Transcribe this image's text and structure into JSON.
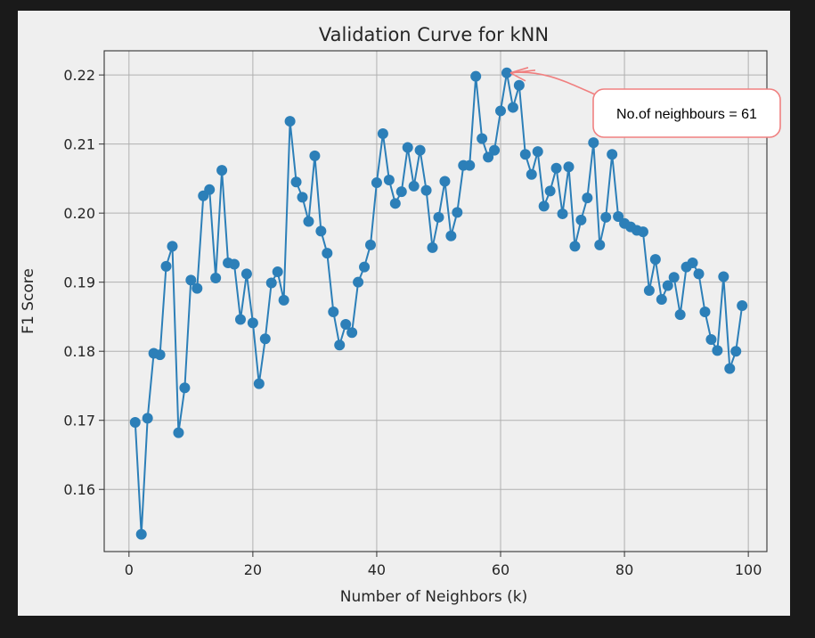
{
  "chart_data": {
    "type": "line",
    "title": "Validation Curve for kNN",
    "xlabel": "Number of Neighbors (k)",
    "ylabel": "F1 Score",
    "xlim": [
      -4,
      103
    ],
    "ylim": [
      0.151,
      0.2235
    ],
    "xticks": [
      0,
      20,
      40,
      60,
      80,
      100
    ],
    "yticks": [
      0.16,
      0.17,
      0.18,
      0.19,
      0.2,
      0.21,
      0.22
    ],
    "grid": true,
    "marker": "circle",
    "line_color": "#2c7fb8",
    "series": [
      {
        "x": [
          1,
          2,
          3,
          4,
          5,
          6,
          7,
          8,
          9,
          10,
          11,
          12,
          13,
          14,
          15,
          16,
          17,
          18,
          19,
          20,
          21,
          22,
          23,
          24,
          25,
          26,
          27,
          28,
          29,
          30,
          31,
          32,
          33,
          34,
          35,
          36,
          37,
          38,
          39,
          40,
          41,
          42,
          43,
          44,
          45,
          46,
          47,
          48,
          49,
          50,
          51,
          52,
          53,
          54,
          55,
          56,
          57,
          58,
          59,
          60,
          61,
          62,
          63,
          64,
          65,
          66,
          67,
          68,
          69,
          70,
          71,
          72,
          73,
          74,
          75,
          76,
          77,
          78,
          79,
          80,
          81,
          82,
          83,
          84,
          85,
          86,
          87,
          88,
          89,
          90,
          91,
          92,
          93,
          94,
          95,
          96,
          97,
          98,
          99
        ],
        "y": [
          0.1697,
          0.1535,
          0.1703,
          0.1797,
          0.1795,
          0.1923,
          0.1952,
          0.1682,
          0.1747,
          0.1903,
          0.1891,
          0.2025,
          0.2034,
          0.1906,
          0.2062,
          0.1928,
          0.1926,
          0.1846,
          0.1912,
          0.1841,
          0.1753,
          0.1818,
          0.1899,
          0.1915,
          0.1874,
          0.2133,
          0.2045,
          0.2023,
          0.1988,
          0.2083,
          0.1974,
          0.1942,
          0.1857,
          0.1809,
          0.1839,
          0.1827,
          0.19,
          0.1922,
          0.1954,
          0.2044,
          0.2115,
          0.2048,
          0.2014,
          0.2031,
          0.2095,
          0.2039,
          0.2091,
          0.2033,
          0.195,
          0.1994,
          0.2046,
          0.1967,
          0.2001,
          0.2069,
          0.2069,
          0.2198,
          0.2108,
          0.2081,
          0.2091,
          0.2148,
          0.2203,
          0.2153,
          0.2185,
          0.2085,
          0.2056,
          0.2089,
          0.201,
          0.2032,
          0.2065,
          0.1999,
          0.2067,
          0.1952,
          0.199,
          0.2022,
          0.2102,
          0.1954,
          0.1994,
          0.2085,
          0.1995,
          0.1985,
          0.198,
          0.1975,
          0.1973,
          0.1888,
          0.1933,
          0.1875,
          0.1895,
          0.1907,
          0.1853,
          0.1922,
          0.1928,
          0.1912,
          0.1857,
          0.1817,
          0.1801,
          0.1908,
          0.1775,
          0.18,
          0.1866
        ]
      }
    ],
    "annotation": {
      "text": "No.of neighbours = 61",
      "x": 61,
      "y": 0.2203
    }
  }
}
